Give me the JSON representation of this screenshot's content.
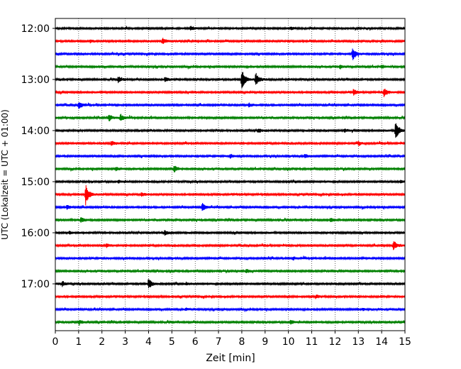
{
  "chart_data": {
    "type": "line",
    "xlabel": "Zeit  [min]",
    "ylabel": "UTC (Lokalzeit = UTC + 01:00)",
    "xlim": [
      0,
      15
    ],
    "x_ticks": [
      0,
      1,
      2,
      3,
      4,
      5,
      6,
      7,
      8,
      9,
      10,
      11,
      12,
      13,
      14,
      15
    ],
    "y_ticks": [
      "12:00",
      "13:00",
      "14:00",
      "15:00",
      "16:00",
      "17:00"
    ],
    "grid": "vertical dotted at each minute",
    "trace_colors": [
      "#000000",
      "#ff0000",
      "#0000ff",
      "#008000"
    ],
    "trace_interval_min": 15,
    "traces": [
      {
        "start": "12:00",
        "events": [
          {
            "t": 5.8,
            "a": 0.35
          },
          {
            "t": 10.1,
            "a": 0.2
          }
        ]
      },
      {
        "start": "12:15",
        "events": [
          {
            "t": 4.6,
            "a": 0.45
          },
          {
            "t": 1.5,
            "a": 0.2
          }
        ]
      },
      {
        "start": "12:30",
        "events": [
          {
            "t": 12.75,
            "a": 1.1
          }
        ]
      },
      {
        "start": "12:45",
        "events": [
          {
            "t": 12.2,
            "a": 0.3
          },
          {
            "t": 14.0,
            "a": 0.25
          }
        ]
      },
      {
        "start": "13:00",
        "events": [
          {
            "t": 2.7,
            "a": 0.45
          },
          {
            "t": 4.7,
            "a": 0.35
          },
          {
            "t": 8.0,
            "a": 1.6
          },
          {
            "t": 8.6,
            "a": 1.0
          }
        ]
      },
      {
        "start": "13:15",
        "events": [
          {
            "t": 12.8,
            "a": 0.5
          },
          {
            "t": 14.1,
            "a": 0.7
          }
        ]
      },
      {
        "start": "13:30",
        "events": [
          {
            "t": 1.0,
            "a": 0.6
          },
          {
            "t": 8.3,
            "a": 0.25
          }
        ]
      },
      {
        "start": "13:45",
        "events": [
          {
            "t": 2.3,
            "a": 0.5
          },
          {
            "t": 2.8,
            "a": 0.55
          }
        ]
      },
      {
        "start": "14:00",
        "events": [
          {
            "t": 8.7,
            "a": 0.3
          },
          {
            "t": 12.4,
            "a": 0.3
          },
          {
            "t": 14.6,
            "a": 1.4
          }
        ]
      },
      {
        "start": "14:15",
        "events": [
          {
            "t": 2.4,
            "a": 0.4
          },
          {
            "t": 13.0,
            "a": 0.3
          }
        ]
      },
      {
        "start": "14:30",
        "events": [
          {
            "t": 7.5,
            "a": 0.3
          },
          {
            "t": 10.7,
            "a": 0.3
          }
        ]
      },
      {
        "start": "14:45",
        "events": [
          {
            "t": 5.1,
            "a": 0.55
          },
          {
            "t": 2.6,
            "a": 0.3
          }
        ]
      },
      {
        "start": "15:00",
        "events": [
          {
            "t": 14.8,
            "a": 0.2
          },
          {
            "t": 2.7,
            "a": 0.2
          }
        ]
      },
      {
        "start": "15:15",
        "events": [
          {
            "t": 1.3,
            "a": 1.6
          },
          {
            "t": 3.7,
            "a": 0.3
          }
        ]
      },
      {
        "start": "15:30",
        "events": [
          {
            "t": 6.3,
            "a": 0.6
          },
          {
            "t": 0.5,
            "a": 0.3
          }
        ]
      },
      {
        "start": "15:45",
        "events": [
          {
            "t": 1.1,
            "a": 0.4
          },
          {
            "t": 11.8,
            "a": 0.3
          }
        ]
      },
      {
        "start": "16:00",
        "events": [
          {
            "t": 4.7,
            "a": 0.35
          },
          {
            "t": 0.6,
            "a": 0.2
          }
        ]
      },
      {
        "start": "16:15",
        "events": [
          {
            "t": 14.5,
            "a": 0.7
          },
          {
            "t": 2.2,
            "a": 0.25
          }
        ]
      },
      {
        "start": "16:30",
        "events": [
          {
            "t": 10.2,
            "a": 0.2
          }
        ]
      },
      {
        "start": "16:45",
        "events": [
          {
            "t": 8.2,
            "a": 0.3
          }
        ]
      },
      {
        "start": "17:00",
        "events": [
          {
            "t": 0.3,
            "a": 0.4
          },
          {
            "t": 4.0,
            "a": 0.8
          },
          {
            "t": 5.6,
            "a": 0.2
          }
        ]
      },
      {
        "start": "17:15",
        "events": [
          {
            "t": 11.2,
            "a": 0.2
          }
        ]
      },
      {
        "start": "17:30",
        "events": [
          {
            "t": 5.6,
            "a": 0.15
          },
          {
            "t": 13.2,
            "a": 0.15
          }
        ]
      },
      {
        "start": "17:45",
        "events": [
          {
            "t": 1.0,
            "a": 0.3
          },
          {
            "t": 10.1,
            "a": 0.3
          }
        ]
      }
    ]
  }
}
